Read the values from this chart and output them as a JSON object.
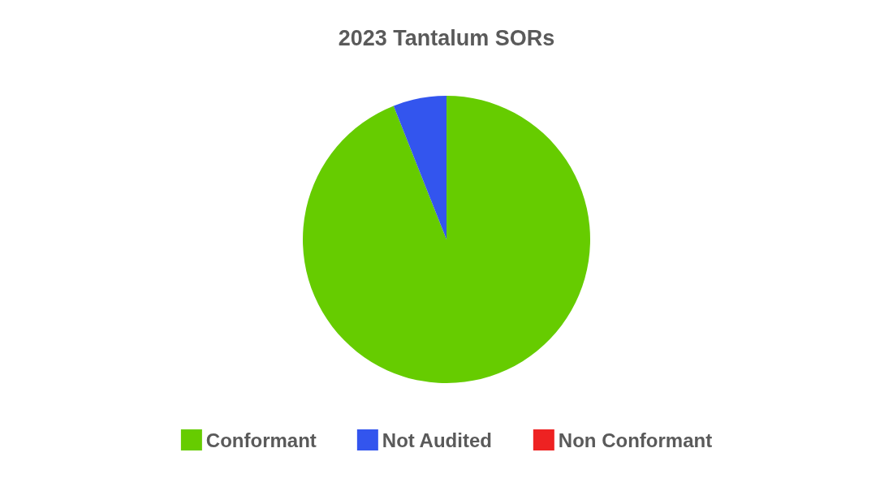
{
  "chart_data": {
    "type": "pie",
    "title": "2023 Tantalum SORs",
    "categories": [
      "Conformant",
      "Not Audited",
      "Non Conformant"
    ],
    "values": [
      94,
      6,
      0
    ],
    "colors": [
      "#66cc00",
      "#3355ee",
      "#ee2222"
    ],
    "legend": "bottom"
  }
}
